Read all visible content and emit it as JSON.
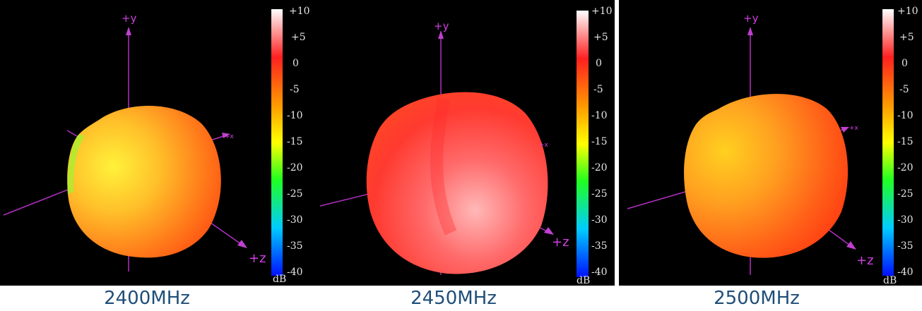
{
  "colorbar": {
    "ticks": [
      "+10",
      "+5",
      "0",
      "-5",
      "-10",
      "-15",
      "-20",
      "-25",
      "-30",
      "-35",
      "-40"
    ],
    "unit": "dB"
  },
  "axes": {
    "y": "+y",
    "x": "+x",
    "z": "+z"
  },
  "panels": [
    {
      "caption": "2400MHz",
      "colors": {
        "light": "#ffe236",
        "mid": "#ff9a20",
        "dark": "#ff4a12",
        "edge": "#8ef02a"
      }
    },
    {
      "caption": "2450MHz",
      "colors": {
        "light": "#ffb0b0",
        "mid": "#ff5050",
        "dark": "#ff2626",
        "edge": "#ff5a30"
      }
    },
    {
      "caption": "2500MHz",
      "colors": {
        "light": "#ffc21a",
        "mid": "#ff7a1c",
        "dark": "#ff3a10",
        "edge": "#ffd22a"
      }
    }
  ]
}
